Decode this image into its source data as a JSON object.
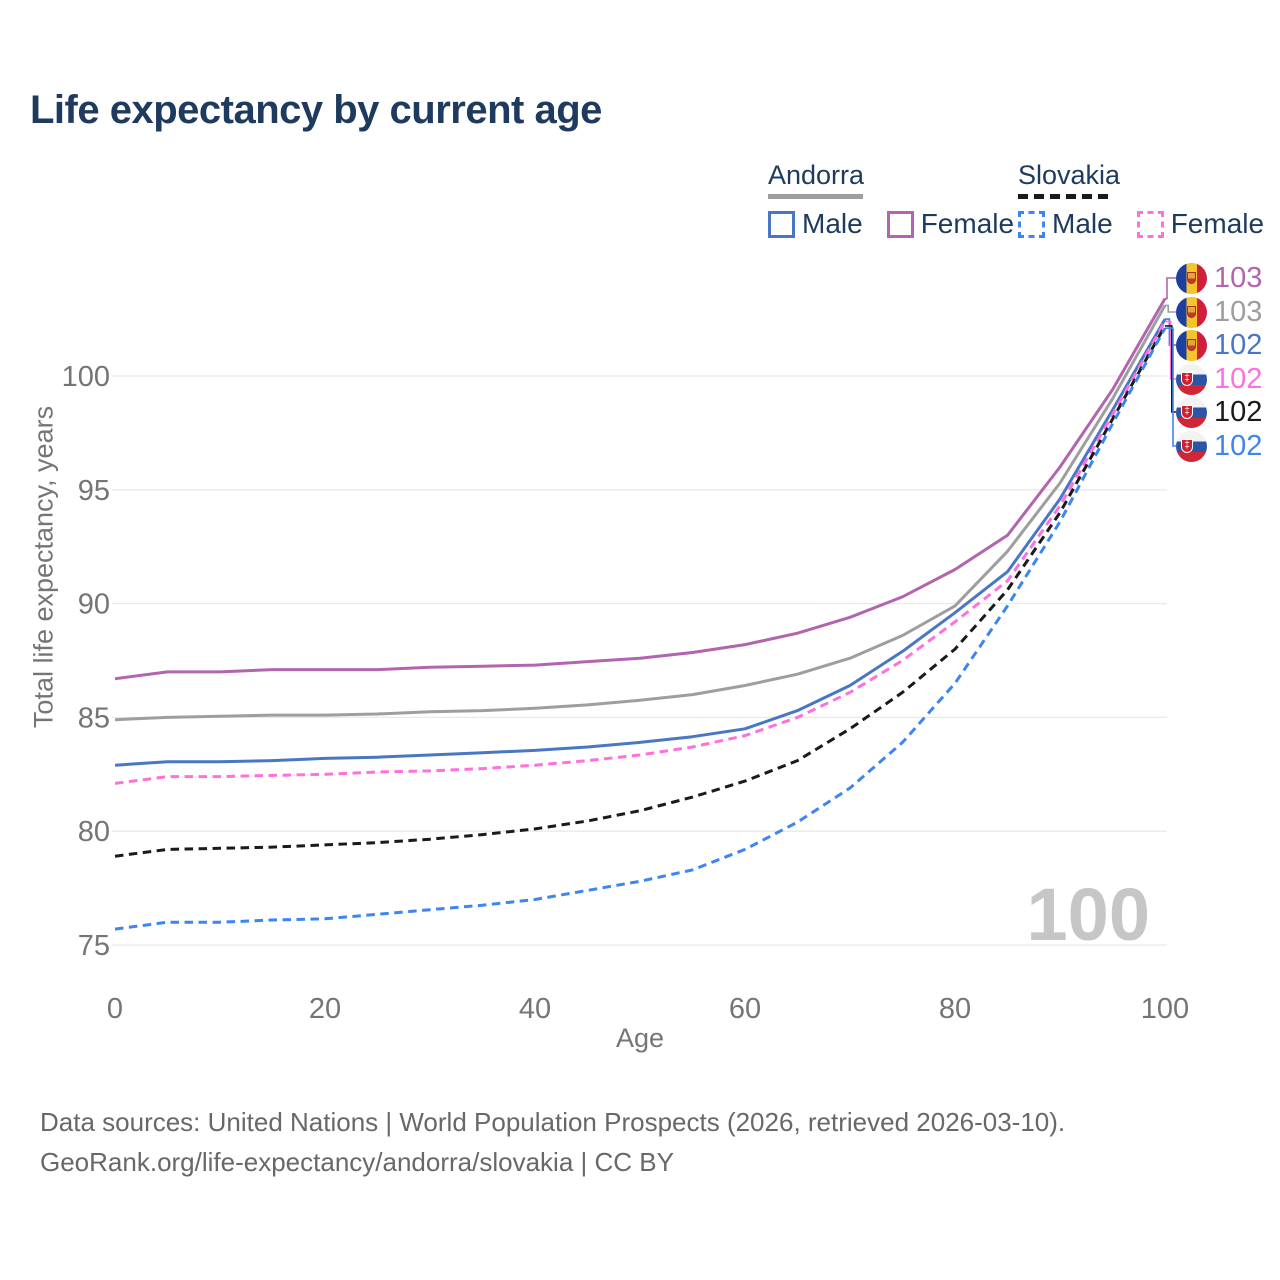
{
  "title": "Life expectancy by current age",
  "legend": {
    "groups": [
      {
        "title": "Andorra",
        "line_style": "solid",
        "line_color": "#9e9e9e",
        "items": [
          {
            "label": "Male",
            "color": "#4a77c4",
            "style": "solid"
          },
          {
            "label": "Female",
            "color": "#b264af",
            "style": "solid"
          }
        ]
      },
      {
        "title": "Slovakia",
        "line_style": "dashed",
        "line_color": "#1a1a1a",
        "items": [
          {
            "label": "Male",
            "color": "#3d85f3",
            "style": "dashed"
          },
          {
            "label": "Female",
            "color": "#ff70dc",
            "style": "dashed"
          }
        ]
      }
    ]
  },
  "end_labels": [
    {
      "flag": "andorra",
      "value": "103"
    },
    {
      "flag": "andorra",
      "value": "103"
    },
    {
      "flag": "andorra",
      "value": "102"
    },
    {
      "flag": "slovakia",
      "value": "102"
    },
    {
      "flag": "slovakia",
      "value": "102"
    },
    {
      "flag": "slovakia",
      "value": "102"
    }
  ],
  "watermark": "100",
  "footer": {
    "line1": "Data sources: United Nations | World Population Prospects (2026, retrieved 2026-03-10).",
    "line2": "GeoRank.org/life-expectancy/andorra/slovakia | CC BY"
  },
  "colors": {
    "title_text": "#1e3a5f",
    "axis_text": "#757575",
    "gridline": "#e9e9e9",
    "watermark": "#c6c6c6",
    "footer_text": "#686868"
  },
  "chart_data": {
    "type": "line",
    "title": "Life expectancy by current age",
    "xlabel": "Age",
    "ylabel": "Total life expectancy, years",
    "x_ticks": [
      0,
      20,
      40,
      60,
      80,
      100
    ],
    "y_ticks": [
      75,
      80,
      85,
      90,
      95,
      100
    ],
    "xlim": [
      0,
      100
    ],
    "ylim": [
      74,
      104
    ],
    "grid": "horizontal",
    "legend_position": "top-right",
    "x": [
      0,
      5,
      10,
      15,
      20,
      25,
      30,
      35,
      40,
      45,
      50,
      55,
      60,
      65,
      70,
      75,
      80,
      85,
      90,
      95,
      100
    ],
    "series": [
      {
        "name": "Andorra Female",
        "style": "solid",
        "color": "#b264af",
        "end_label": "103",
        "values": [
          86.7,
          87.0,
          87.0,
          87.1,
          87.1,
          87.1,
          87.2,
          87.25,
          87.3,
          87.45,
          87.6,
          87.85,
          88.2,
          88.7,
          89.4,
          90.3,
          91.5,
          93.0,
          96.0,
          99.4,
          103.4
        ]
      },
      {
        "name": "Andorra Both sexes",
        "style": "solid",
        "color": "#9e9e9e",
        "end_label": "103",
        "values": [
          84.9,
          85.0,
          85.05,
          85.1,
          85.1,
          85.15,
          85.25,
          85.3,
          85.4,
          85.55,
          85.75,
          86.0,
          86.4,
          86.9,
          87.6,
          88.6,
          89.9,
          92.3,
          95.3,
          99.0,
          103.1
        ]
      },
      {
        "name": "Andorra Male",
        "style": "solid",
        "color": "#4a77c4",
        "end_label": "102",
        "values": [
          82.9,
          83.05,
          83.05,
          83.1,
          83.2,
          83.25,
          83.35,
          83.45,
          83.55,
          83.7,
          83.9,
          84.15,
          84.5,
          85.3,
          86.4,
          87.9,
          89.6,
          91.4,
          94.6,
          98.5,
          102.5
        ]
      },
      {
        "name": "Slovakia Female",
        "style": "dashed",
        "color": "#ff70dc",
        "end_label": "102",
        "values": [
          82.1,
          82.4,
          82.4,
          82.45,
          82.5,
          82.6,
          82.65,
          82.75,
          82.9,
          83.1,
          83.35,
          83.7,
          84.2,
          85.0,
          86.1,
          87.5,
          89.2,
          91.0,
          94.3,
          98.3,
          102.4
        ]
      },
      {
        "name": "Slovakia Both sexes",
        "style": "dashed",
        "color": "#1a1a1a",
        "end_label": "102",
        "values": [
          78.9,
          79.2,
          79.25,
          79.3,
          79.4,
          79.5,
          79.65,
          79.85,
          80.1,
          80.45,
          80.9,
          81.5,
          82.2,
          83.1,
          84.5,
          86.1,
          88.0,
          90.6,
          94.0,
          98.1,
          102.2
        ]
      },
      {
        "name": "Slovakia Male",
        "style": "dashed",
        "color": "#3d85f3",
        "end_label": "102",
        "values": [
          75.7,
          76.0,
          76.0,
          76.1,
          76.15,
          76.35,
          76.55,
          76.75,
          77.0,
          77.4,
          77.8,
          78.3,
          79.2,
          80.4,
          81.9,
          83.9,
          86.5,
          89.9,
          93.6,
          97.9,
          102.1
        ]
      }
    ]
  }
}
